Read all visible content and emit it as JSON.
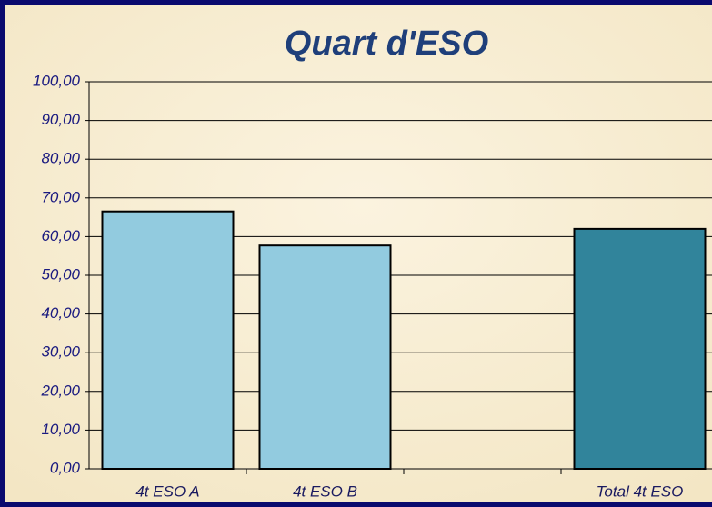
{
  "chart_data": {
    "type": "bar",
    "title": "Quart d'ESO",
    "categories": [
      "4t ESO A",
      "4t ESO B",
      null,
      "Total 4t ESO"
    ],
    "values": [
      66.5,
      57.7,
      null,
      62.0
    ],
    "colors": [
      "#92cbdf",
      "#92cbdf",
      "#92cbdf",
      "#31849b"
    ],
    "ylim": [
      0,
      100
    ],
    "yticks": [
      {
        "value": 0,
        "label": "0,00"
      },
      {
        "value": 10,
        "label": "10,00"
      },
      {
        "value": 20,
        "label": "20,00"
      },
      {
        "value": 30,
        "label": "30,00"
      },
      {
        "value": 40,
        "label": "40,00"
      },
      {
        "value": 50,
        "label": "50,00"
      },
      {
        "value": 60,
        "label": "60,00"
      },
      {
        "value": 70,
        "label": "70,00"
      },
      {
        "value": 80,
        "label": "80,00"
      },
      {
        "value": 90,
        "label": "90,00"
      },
      {
        "value": 100,
        "label": "100,00"
      }
    ],
    "grid": true
  }
}
